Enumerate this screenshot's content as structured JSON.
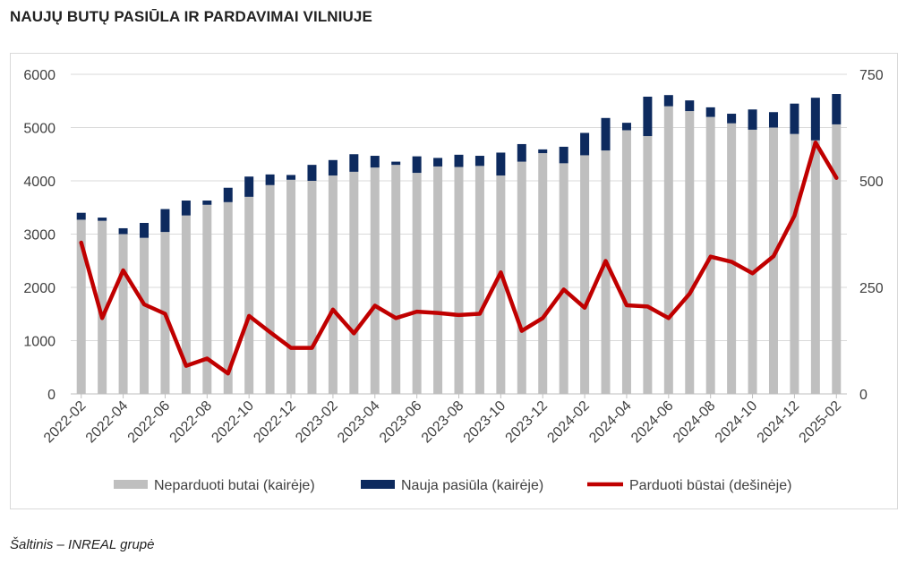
{
  "title": "NAUJŲ BUTŲ PASIŪLA IR PARDAVIMAI VILNIUJE",
  "source": "Šaltinis – INREAL grupė",
  "colors": {
    "unsold": "#bfbfbf",
    "new_supply": "#0d2a5e",
    "sold": "#c00000",
    "grid": "#d9d9d9",
    "text": "#404040"
  },
  "chart_data": {
    "type": "bar",
    "stacked": true,
    "x": [
      "2022-02",
      "2022-03",
      "2022-04",
      "2022-05",
      "2022-06",
      "2022-07",
      "2022-08",
      "2022-09",
      "2022-10",
      "2022-11",
      "2022-12",
      "2023-01",
      "2023-02",
      "2023-03",
      "2023-04",
      "2023-05",
      "2023-06",
      "2023-07",
      "2023-08",
      "2023-09",
      "2023-10",
      "2023-11",
      "2023-12",
      "2024-01",
      "2024-02",
      "2024-03",
      "2024-04",
      "2024-05",
      "2024-06",
      "2024-07",
      "2024-08",
      "2024-09",
      "2024-10",
      "2024-11",
      "2024-12",
      "2025-01",
      "2025-02"
    ],
    "x_tick_labels": [
      "2022-02",
      "2022-04",
      "2022-06",
      "2022-08",
      "2022-10",
      "2022-12",
      "2023-02",
      "2023-04",
      "2023-06",
      "2023-08",
      "2023-10",
      "2023-12",
      "2024-02",
      "2024-04",
      "2024-06",
      "2024-08",
      "2024-10",
      "2024-12",
      "2025-02"
    ],
    "series": [
      {
        "name": "Neparduoti butai (kairėje)",
        "type": "bar",
        "axis": "left",
        "values": [
          3270,
          3250,
          3000,
          2930,
          3040,
          3350,
          3550,
          3600,
          3700,
          3920,
          4020,
          4000,
          4100,
          4170,
          4250,
          4300,
          4150,
          4270,
          4260,
          4280,
          4100,
          4360,
          4520,
          4330,
          4480,
          4570,
          4950,
          4840,
          5400,
          5310,
          5200,
          5080,
          4960,
          5000,
          4880,
          4760,
          5060
        ]
      },
      {
        "name": "Nauja pasiūla (kairėje)",
        "type": "bar",
        "axis": "left",
        "values": [
          130,
          60,
          110,
          280,
          430,
          280,
          80,
          270,
          380,
          200,
          90,
          300,
          290,
          330,
          220,
          60,
          310,
          160,
          230,
          190,
          430,
          330,
          70,
          310,
          420,
          610,
          140,
          740,
          210,
          200,
          180,
          180,
          380,
          290,
          570,
          800,
          570
        ]
      },
      {
        "name": "Parduoti būstai (dešinėje)",
        "type": "line",
        "axis": "right",
        "values": [
          355,
          178,
          290,
          210,
          188,
          66,
          83,
          48,
          183,
          145,
          108,
          108,
          198,
          142,
          207,
          178,
          193,
          190,
          185,
          188,
          285,
          148,
          178,
          245,
          202,
          312,
          208,
          205,
          178,
          235,
          322,
          310,
          283,
          323,
          418,
          590,
          507
        ]
      }
    ],
    "y_left": {
      "min": 0,
      "max": 6000,
      "ticks": [
        0,
        1000,
        2000,
        3000,
        4000,
        5000,
        6000
      ]
    },
    "y_right": {
      "min": 0,
      "max": 750,
      "ticks": [
        0,
        250,
        500,
        750
      ]
    },
    "grid": true,
    "legend_position": "bottom"
  }
}
